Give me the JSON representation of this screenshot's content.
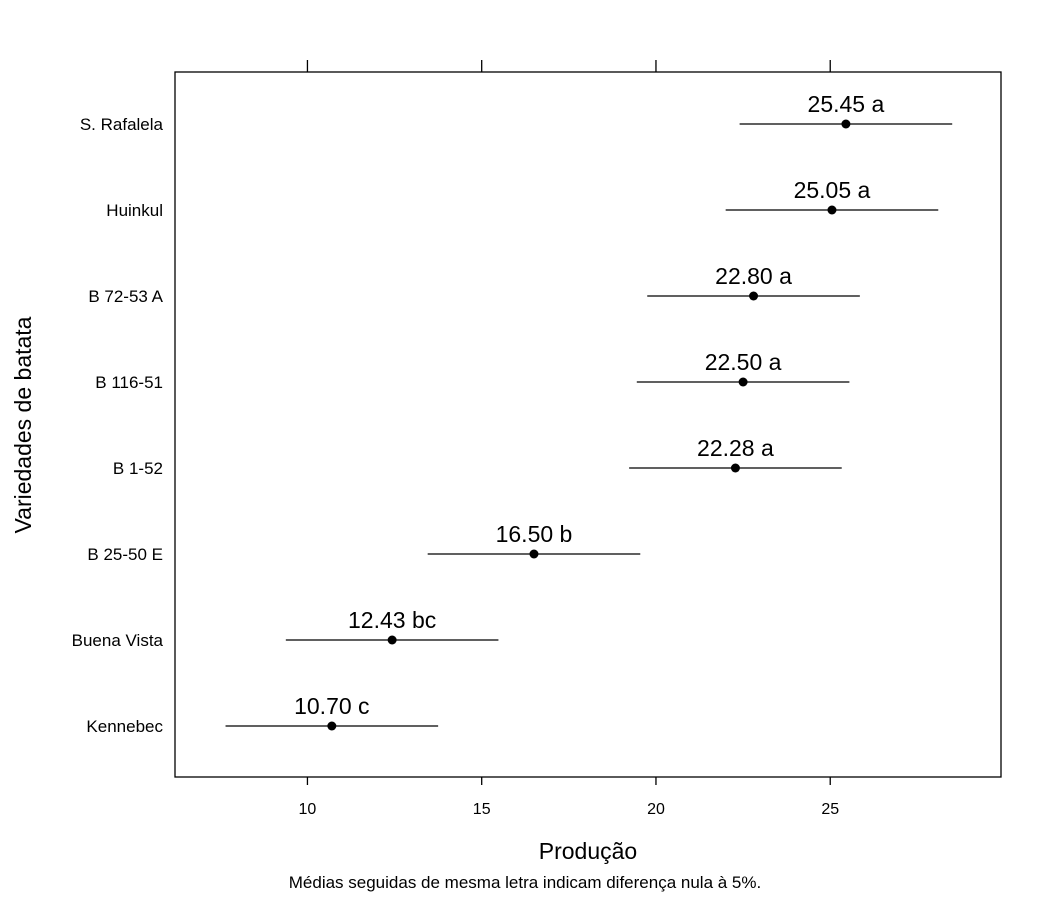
{
  "chart_data": {
    "type": "scatter",
    "subtype": "dot-plot-with-error-bars",
    "xlabel": "Produção",
    "ylabel": "Variedades de batata",
    "note": "Médias seguidas de mesma letra indicam diferença nula à 5%.",
    "xlim": [
      6.2,
      29.9
    ],
    "xticks": [
      10,
      15,
      20,
      25
    ],
    "grid": false,
    "categories": [
      "S. Rafalela",
      "Huinkul",
      "B 72-53 A",
      "B 116-51",
      "B 1-52",
      "B 25-50 E",
      "Buena Vista",
      "Kennebec"
    ],
    "series": [
      {
        "points": [
          {
            "category": "S. Rafalela",
            "mean": 25.45,
            "lower": 22.4,
            "upper": 28.5,
            "label": "25.45 a"
          },
          {
            "category": "Huinkul",
            "mean": 25.05,
            "lower": 22.0,
            "upper": 28.1,
            "label": "25.05 a"
          },
          {
            "category": "B 72-53 A",
            "mean": 22.8,
            "lower": 19.75,
            "upper": 25.85,
            "label": "22.80 a"
          },
          {
            "category": "B 116-51",
            "mean": 22.5,
            "lower": 19.45,
            "upper": 25.55,
            "label": "22.50 a"
          },
          {
            "category": "B 1-52",
            "mean": 22.28,
            "lower": 19.23,
            "upper": 25.33,
            "label": "22.28 a"
          },
          {
            "category": "B 25-50 E",
            "mean": 16.5,
            "lower": 13.45,
            "upper": 19.55,
            "label": "16.50 b"
          },
          {
            "category": "Buena Vista",
            "mean": 12.43,
            "lower": 9.38,
            "upper": 15.48,
            "label": "12.43 bc"
          },
          {
            "category": "Kennebec",
            "mean": 10.7,
            "lower": 7.65,
            "upper": 13.75,
            "label": "10.70 c"
          }
        ]
      }
    ]
  }
}
